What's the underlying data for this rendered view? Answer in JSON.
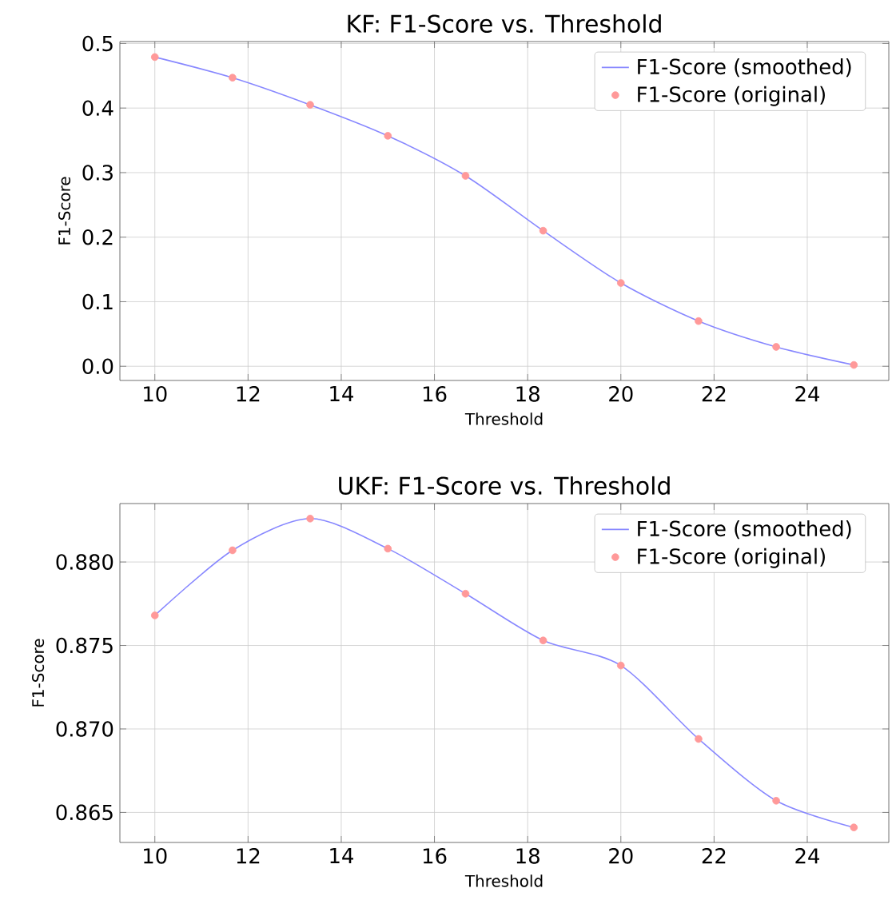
{
  "chart_data": [
    {
      "type": "line",
      "title": "KF: F1-Score vs. Threshold",
      "xlabel": "Threshold",
      "ylabel": "F1-Score",
      "x": [
        10,
        11.667,
        13.333,
        15,
        16.667,
        18.333,
        20,
        21.667,
        23.333,
        25
      ],
      "series": [
        {
          "name": "F1-Score (smoothed)",
          "marker": "none",
          "color": "#8888ff",
          "values": [
            0.479,
            0.447,
            0.405,
            0.357,
            0.295,
            0.21,
            0.129,
            0.07,
            0.03,
            0.002
          ]
        },
        {
          "name": "F1-Score (original)",
          "type": "scatter",
          "marker": "circle",
          "color": "#ff9999",
          "values": [
            0.479,
            0.447,
            0.405,
            0.357,
            0.295,
            0.21,
            0.129,
            0.07,
            0.03,
            0.002
          ]
        }
      ],
      "xlim": [
        9.25,
        25.75
      ],
      "xticks": [
        10,
        12,
        14,
        16,
        18,
        20,
        22,
        24
      ],
      "ylim": [
        -0.022,
        0.503
      ],
      "yticks": [
        {
          "value": 0,
          "label": "0.0"
        },
        0.1,
        0.2,
        0.3,
        0.4,
        0.5
      ],
      "grid": true,
      "legend": "top right"
    },
    {
      "type": "line",
      "title": "UKF: F1-Score vs. Threshold",
      "xlabel": "Threshold",
      "ylabel": "F1-Score",
      "x": [
        10,
        11.667,
        13.333,
        15,
        16.667,
        18.333,
        20,
        21.667,
        23.333,
        25
      ],
      "series": [
        {
          "name": "F1-Score (smoothed)",
          "marker": "none",
          "color": "#8888ff",
          "values": [
            0.8768,
            0.8807,
            0.8826,
            0.8808,
            0.8781,
            0.8753,
            0.8738,
            0.8694,
            0.8657,
            0.8641
          ]
        },
        {
          "name": "F1-Score (original)",
          "type": "scatter",
          "marker": "circle",
          "color": "#ff9999",
          "values": [
            0.8768,
            0.8807,
            0.8826,
            0.8808,
            0.8781,
            0.8753,
            0.8738,
            0.8694,
            0.8657,
            0.8641
          ]
        }
      ],
      "xlim": [
        9.25,
        25.75
      ],
      "xticks": [
        10,
        12,
        14,
        16,
        18,
        20,
        22,
        24
      ],
      "ylim": [
        0.8632,
        0.8835
      ],
      "yticks": [
        0.865,
        {
          "value": 0.87,
          "label": "0.870"
        },
        0.875,
        {
          "value": 0.88,
          "label": "0.880"
        }
      ],
      "grid": true,
      "legend": "top right"
    }
  ]
}
